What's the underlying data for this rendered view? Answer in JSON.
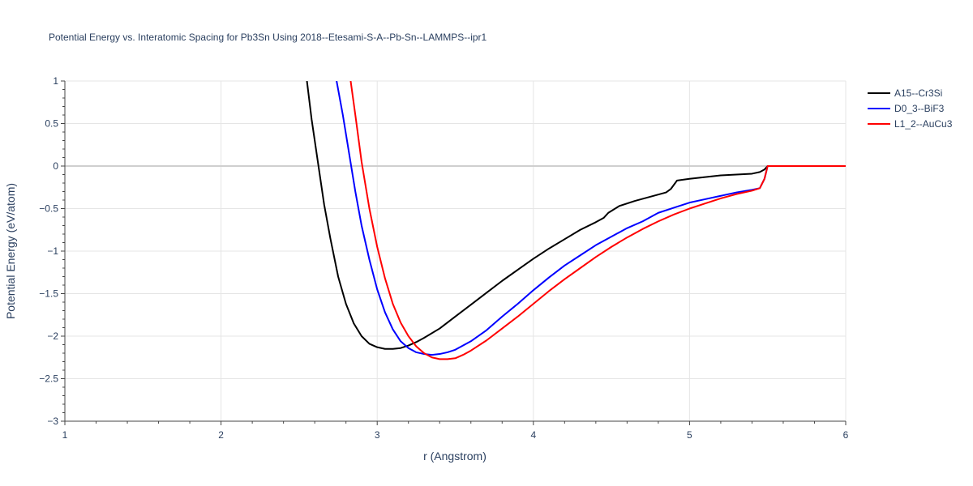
{
  "chart_data": {
    "type": "line",
    "title": "Potential Energy vs. Interatomic Spacing for Pb3Sn Using 2018--Etesami-S-A--Pb-Sn--LAMMPS--ipr1",
    "xlabel": "r (Angstrom)",
    "ylabel": "Potential Energy (eV/atom)",
    "xlim": [
      1,
      6
    ],
    "ylim": [
      -3,
      1
    ],
    "xticks": [
      1,
      2,
      3,
      4,
      5,
      6
    ],
    "yticks": [
      -3,
      -2.5,
      -2,
      -1.5,
      -1,
      -0.5,
      0,
      0.5,
      1
    ],
    "ytick_labels": [
      "−3",
      "−2.5",
      "−2",
      "−1.5",
      "−1",
      "−0.5",
      "0",
      "0.5",
      "1"
    ],
    "grid": true,
    "legend_position": "top-right",
    "series": [
      {
        "name": "A15--Cr3Si",
        "color": "#000000",
        "x": [
          2.55,
          2.58,
          2.62,
          2.66,
          2.7,
          2.75,
          2.8,
          2.85,
          2.9,
          2.95,
          3.0,
          3.05,
          3.1,
          3.15,
          3.2,
          3.25,
          3.3,
          3.4,
          3.5,
          3.6,
          3.7,
          3.8,
          3.9,
          4.0,
          4.1,
          4.2,
          4.3,
          4.4,
          4.45,
          4.48,
          4.55,
          4.65,
          4.75,
          4.85,
          4.88,
          4.92,
          5.0,
          5.1,
          5.2,
          5.3,
          5.4,
          5.45,
          5.48,
          5.5,
          5.55,
          5.7,
          6.0
        ],
        "values": [
          1.0,
          0.55,
          0.05,
          -0.45,
          -0.85,
          -1.3,
          -1.62,
          -1.85,
          -2.0,
          -2.09,
          -2.13,
          -2.15,
          -2.15,
          -2.14,
          -2.11,
          -2.07,
          -2.02,
          -1.91,
          -1.77,
          -1.63,
          -1.49,
          -1.35,
          -1.22,
          -1.09,
          -0.97,
          -0.86,
          -0.75,
          -0.66,
          -0.61,
          -0.55,
          -0.47,
          -0.41,
          -0.36,
          -0.31,
          -0.27,
          -0.17,
          -0.15,
          -0.13,
          -0.11,
          -0.1,
          -0.09,
          -0.07,
          -0.04,
          0.0,
          0.0,
          0.0,
          0.0
        ]
      },
      {
        "name": "D0_3--BiF3",
        "color": "#0000ff",
        "x": [
          2.74,
          2.78,
          2.82,
          2.86,
          2.9,
          2.95,
          3.0,
          3.05,
          3.1,
          3.15,
          3.2,
          3.25,
          3.3,
          3.35,
          3.4,
          3.45,
          3.5,
          3.6,
          3.7,
          3.8,
          3.9,
          4.0,
          4.1,
          4.2,
          4.3,
          4.4,
          4.5,
          4.6,
          4.7,
          4.75,
          4.8,
          4.9,
          5.0,
          5.1,
          5.2,
          5.3,
          5.4,
          5.45,
          5.48,
          5.5,
          5.55,
          5.7,
          6.0
        ],
        "values": [
          1.0,
          0.6,
          0.15,
          -0.3,
          -0.7,
          -1.1,
          -1.45,
          -1.72,
          -1.92,
          -2.06,
          -2.14,
          -2.19,
          -2.21,
          -2.22,
          -2.21,
          -2.19,
          -2.16,
          -2.06,
          -1.93,
          -1.77,
          -1.62,
          -1.46,
          -1.31,
          -1.17,
          -1.05,
          -0.93,
          -0.83,
          -0.73,
          -0.65,
          -0.6,
          -0.55,
          -0.49,
          -0.43,
          -0.39,
          -0.35,
          -0.31,
          -0.28,
          -0.26,
          -0.15,
          0.0,
          0.0,
          0.0,
          0.0
        ]
      },
      {
        "name": "L1_2--AuCu3",
        "color": "#ff0000",
        "x": [
          2.83,
          2.86,
          2.9,
          2.95,
          3.0,
          3.05,
          3.1,
          3.15,
          3.2,
          3.25,
          3.3,
          3.35,
          3.4,
          3.45,
          3.5,
          3.55,
          3.6,
          3.7,
          3.8,
          3.9,
          4.0,
          4.1,
          4.2,
          4.3,
          4.4,
          4.5,
          4.6,
          4.7,
          4.8,
          4.9,
          5.0,
          5.1,
          5.2,
          5.3,
          5.4,
          5.45,
          5.48,
          5.5,
          5.55,
          5.7,
          6.0
        ],
        "values": [
          1.0,
          0.6,
          0.05,
          -0.5,
          -0.95,
          -1.32,
          -1.62,
          -1.84,
          -2.0,
          -2.12,
          -2.2,
          -2.25,
          -2.27,
          -2.27,
          -2.26,
          -2.22,
          -2.17,
          -2.05,
          -1.91,
          -1.77,
          -1.62,
          -1.47,
          -1.33,
          -1.2,
          -1.07,
          -0.95,
          -0.84,
          -0.74,
          -0.65,
          -0.57,
          -0.5,
          -0.44,
          -0.38,
          -0.33,
          -0.29,
          -0.26,
          -0.15,
          0.0,
          0.0,
          0.0,
          0.0
        ]
      }
    ]
  }
}
